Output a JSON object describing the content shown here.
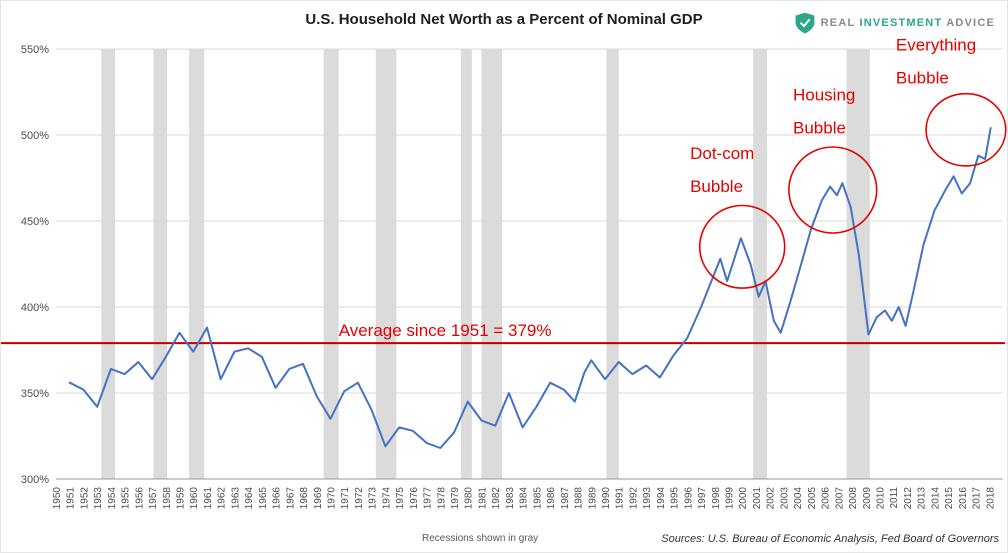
{
  "header": {
    "title": "U.S. Household Net Worth as a Percent of Nominal GDP",
    "logo": {
      "shield_icon": "shield-check-icon",
      "real": "REAL",
      "investment": "INVESTMENT",
      "advice": "ADVICE",
      "teal_color": "#2fa58c",
      "gray_color": "#8a8a8a"
    }
  },
  "footer": {
    "recessions_note": "Recessions shown in gray",
    "sources": "Sources: U.S. Bureau of Economic Analysis, Fed Board of Governors"
  },
  "chart_data": {
    "type": "line",
    "title": "U.S. Household Net Worth as a Percent of Nominal GDP",
    "xlabel": "",
    "ylabel": "",
    "xlim": [
      1950,
      2019
    ],
    "ylim": [
      300,
      550
    ],
    "yticks": [
      300,
      350,
      400,
      450,
      500,
      550
    ],
    "ytick_suffix": "%",
    "xticks": [
      1950,
      1951,
      1952,
      1953,
      1954,
      1955,
      1956,
      1957,
      1958,
      1959,
      1960,
      1961,
      1962,
      1963,
      1964,
      1965,
      1966,
      1967,
      1968,
      1969,
      1970,
      1971,
      1972,
      1973,
      1974,
      1975,
      1976,
      1977,
      1978,
      1979,
      1980,
      1981,
      1982,
      1983,
      1984,
      1985,
      1986,
      1987,
      1988,
      1989,
      1990,
      1991,
      1992,
      1993,
      1994,
      1995,
      1996,
      1997,
      1998,
      1999,
      2000,
      2001,
      2002,
      2003,
      2004,
      2005,
      2006,
      2007,
      2008,
      2009,
      2010,
      2011,
      2012,
      2013,
      2014,
      2015,
      2016,
      2017,
      2018
    ],
    "grid": true,
    "line_color": "#4472c4",
    "grid_color": "#d9d9d9",
    "recession_color": "#dbdbdb",
    "axis_text_color": "#4d4d4d",
    "annotation_color": "#e60000",
    "points": [
      [
        1951,
        356
      ],
      [
        1952,
        352
      ],
      [
        1953,
        342
      ],
      [
        1954,
        364
      ],
      [
        1955,
        361
      ],
      [
        1956,
        368
      ],
      [
        1957,
        358
      ],
      [
        1958,
        371
      ],
      [
        1959,
        385
      ],
      [
        1960,
        374
      ],
      [
        1961,
        388
      ],
      [
        1962,
        358
      ],
      [
        1963,
        374
      ],
      [
        1964,
        376
      ],
      [
        1965,
        371
      ],
      [
        1966,
        353
      ],
      [
        1967,
        364
      ],
      [
        1968,
        367
      ],
      [
        1969,
        348
      ],
      [
        1970,
        335
      ],
      [
        1971,
        351
      ],
      [
        1972,
        356
      ],
      [
        1973,
        340
      ],
      [
        1974,
        319
      ],
      [
        1975,
        330
      ],
      [
        1976,
        328
      ],
      [
        1977,
        321
      ],
      [
        1978,
        318
      ],
      [
        1979,
        327
      ],
      [
        1980,
        345
      ],
      [
        1981,
        334
      ],
      [
        1982,
        331
      ],
      [
        1983,
        350
      ],
      [
        1984,
        330
      ],
      [
        1985,
        342
      ],
      [
        1986,
        356
      ],
      [
        1987,
        352
      ],
      [
        1987.8,
        345
      ],
      [
        1988.5,
        362
      ],
      [
        1989,
        369
      ],
      [
        1990,
        358
      ],
      [
        1991,
        368
      ],
      [
        1992,
        361
      ],
      [
        1993,
        366
      ],
      [
        1994,
        359
      ],
      [
        1995,
        372
      ],
      [
        1996,
        382
      ],
      [
        1997,
        400
      ],
      [
        1998.4,
        428
      ],
      [
        1998.9,
        415
      ],
      [
        1999.9,
        440
      ],
      [
        2000.6,
        425
      ],
      [
        2001.2,
        406
      ],
      [
        2001.7,
        415
      ],
      [
        2002.3,
        392
      ],
      [
        2002.8,
        385
      ],
      [
        2003.5,
        403
      ],
      [
        2004.3,
        425
      ],
      [
        2005,
        445
      ],
      [
        2005.8,
        462
      ],
      [
        2006.4,
        470
      ],
      [
        2006.9,
        465
      ],
      [
        2007.3,
        472
      ],
      [
        2007.9,
        458
      ],
      [
        2008.5,
        430
      ],
      [
        2009.2,
        384
      ],
      [
        2009.8,
        394
      ],
      [
        2010.4,
        398
      ],
      [
        2010.9,
        392
      ],
      [
        2011.4,
        400
      ],
      [
        2011.9,
        389
      ],
      [
        2012.5,
        410
      ],
      [
        2013.2,
        436
      ],
      [
        2014,
        456
      ],
      [
        2014.8,
        468
      ],
      [
        2015.4,
        476
      ],
      [
        2016,
        466
      ],
      [
        2016.6,
        472
      ],
      [
        2017.2,
        488
      ],
      [
        2017.7,
        486
      ],
      [
        2018.1,
        504
      ]
    ],
    "average_line": {
      "value": 379,
      "color": "#c00000",
      "label": "Average since 1951 = 379%"
    },
    "recessions": [
      [
        1953.3,
        1954.3
      ],
      [
        1957.1,
        1958.1
      ],
      [
        1959.7,
        1960.8
      ],
      [
        1969.5,
        1970.6
      ],
      [
        1973.3,
        1974.8
      ],
      [
        1979.5,
        1980.3
      ],
      [
        1981.0,
        1982.5
      ],
      [
        1990.1,
        1991.0
      ],
      [
        2000.8,
        2001.8
      ],
      [
        2007.6,
        2009.3
      ]
    ],
    "annotations": [
      {
        "id": "average-label",
        "lines": [
          "Average since 1951 = 379%"
        ],
        "x": 1970.6,
        "y": 383,
        "size": 17
      },
      {
        "id": "dotcom-bubble",
        "lines": [
          "Dot-com",
          "Bubble"
        ],
        "x": 1996.2,
        "y": 486,
        "size": 17
      },
      {
        "id": "housing-bubble",
        "lines": [
          "Housing",
          "Bubble"
        ],
        "x": 2003.7,
        "y": 520,
        "size": 17
      },
      {
        "id": "everything-bubble",
        "lines": [
          "Everything",
          "Bubble"
        ],
        "x": 2011.2,
        "y": 549,
        "size": 17
      }
    ],
    "ellipses": [
      {
        "id": "dotcom-circle",
        "x": 2000.0,
        "y": 435,
        "rx": 3.1,
        "ry": 24
      },
      {
        "id": "housing-circle",
        "x": 2006.6,
        "y": 468,
        "rx": 3.2,
        "ry": 25
      },
      {
        "id": "everything-circle",
        "x": 2016.3,
        "y": 503,
        "rx": 2.9,
        "ry": 21
      }
    ],
    "legend": "none"
  }
}
